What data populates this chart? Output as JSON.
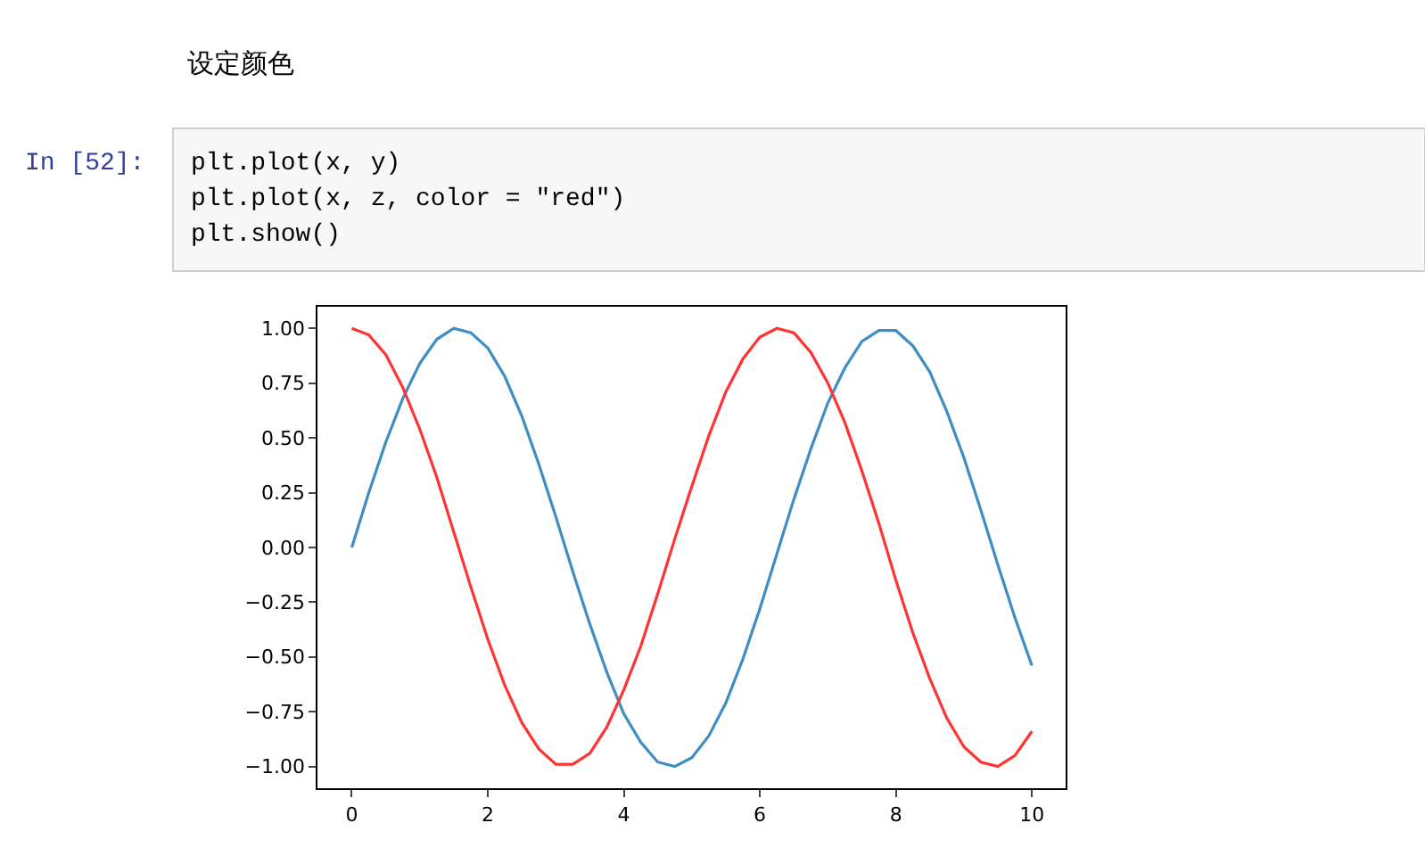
{
  "chart_data": {
    "type": "line",
    "title": "设定颜色",
    "annotations": [
      "In [52]:",
      "plt.plot(x, y)",
      "plt.plot(x, z, color = \"red\")",
      "plt.show()"
    ],
    "x": [
      0,
      0.25,
      0.5,
      0.75,
      1,
      1.25,
      1.5,
      1.75,
      2,
      2.25,
      2.5,
      2.75,
      3,
      3.25,
      3.5,
      3.75,
      4,
      4.25,
      4.5,
      4.75,
      5,
      5.25,
      5.5,
      5.75,
      6,
      6.25,
      6.5,
      6.75,
      7,
      7.25,
      7.5,
      7.75,
      8,
      8.25,
      8.5,
      8.75,
      9,
      9.25,
      9.5,
      9.75,
      10
    ],
    "series": [
      {
        "color": "#3e8ec4",
        "values": [
          0,
          0.25,
          0.48,
          0.68,
          0.84,
          0.95,
          1.0,
          0.98,
          0.91,
          0.78,
          0.6,
          0.38,
          0.14,
          -0.11,
          -0.35,
          -0.57,
          -0.76,
          -0.89,
          -0.98,
          -1.0,
          -0.96,
          -0.86,
          -0.71,
          -0.51,
          -0.28,
          -0.03,
          0.22,
          0.45,
          0.66,
          0.82,
          0.94,
          0.99,
          0.99,
          0.92,
          0.8,
          0.62,
          0.41,
          0.17,
          -0.08,
          -0.32,
          -0.54
        ]
      },
      {
        "color": "#ff3333",
        "values": [
          1,
          0.97,
          0.88,
          0.73,
          0.54,
          0.32,
          0.07,
          -0.18,
          -0.42,
          -0.63,
          -0.8,
          -0.92,
          -0.99,
          -0.99,
          -0.94,
          -0.82,
          -0.65,
          -0.45,
          -0.21,
          0.04,
          0.28,
          0.51,
          0.71,
          0.86,
          0.96,
          1.0,
          0.98,
          0.89,
          0.75,
          0.57,
          0.35,
          0.11,
          -0.15,
          -0.39,
          -0.6,
          -0.78,
          -0.91,
          -0.98,
          -1.0,
          -0.95,
          -0.84
        ]
      }
    ],
    "xlim": [
      -0.5,
      10.5
    ],
    "xticks": [
      0,
      2,
      4,
      6,
      8,
      10
    ],
    "ylim": [
      -1.1,
      1.1
    ],
    "yticks": [
      {
        "value": -1,
        "label": "−1.00"
      },
      {
        "value": -0.75,
        "label": "−0.75"
      },
      {
        "value": -0.5,
        "label": "−0.50"
      },
      {
        "value": -0.25,
        "label": "−0.25"
      },
      {
        "value": 0,
        "label": "0.00"
      },
      {
        "value": 0.25,
        "label": "0.25"
      },
      {
        "value": 0.5,
        "label": "0.50"
      },
      {
        "value": 0.75,
        "label": "0.75"
      },
      {
        "value": 1,
        "label": "1.00"
      }
    ],
    "legend": false,
    "marker": "none",
    "line_style": "solid"
  }
}
